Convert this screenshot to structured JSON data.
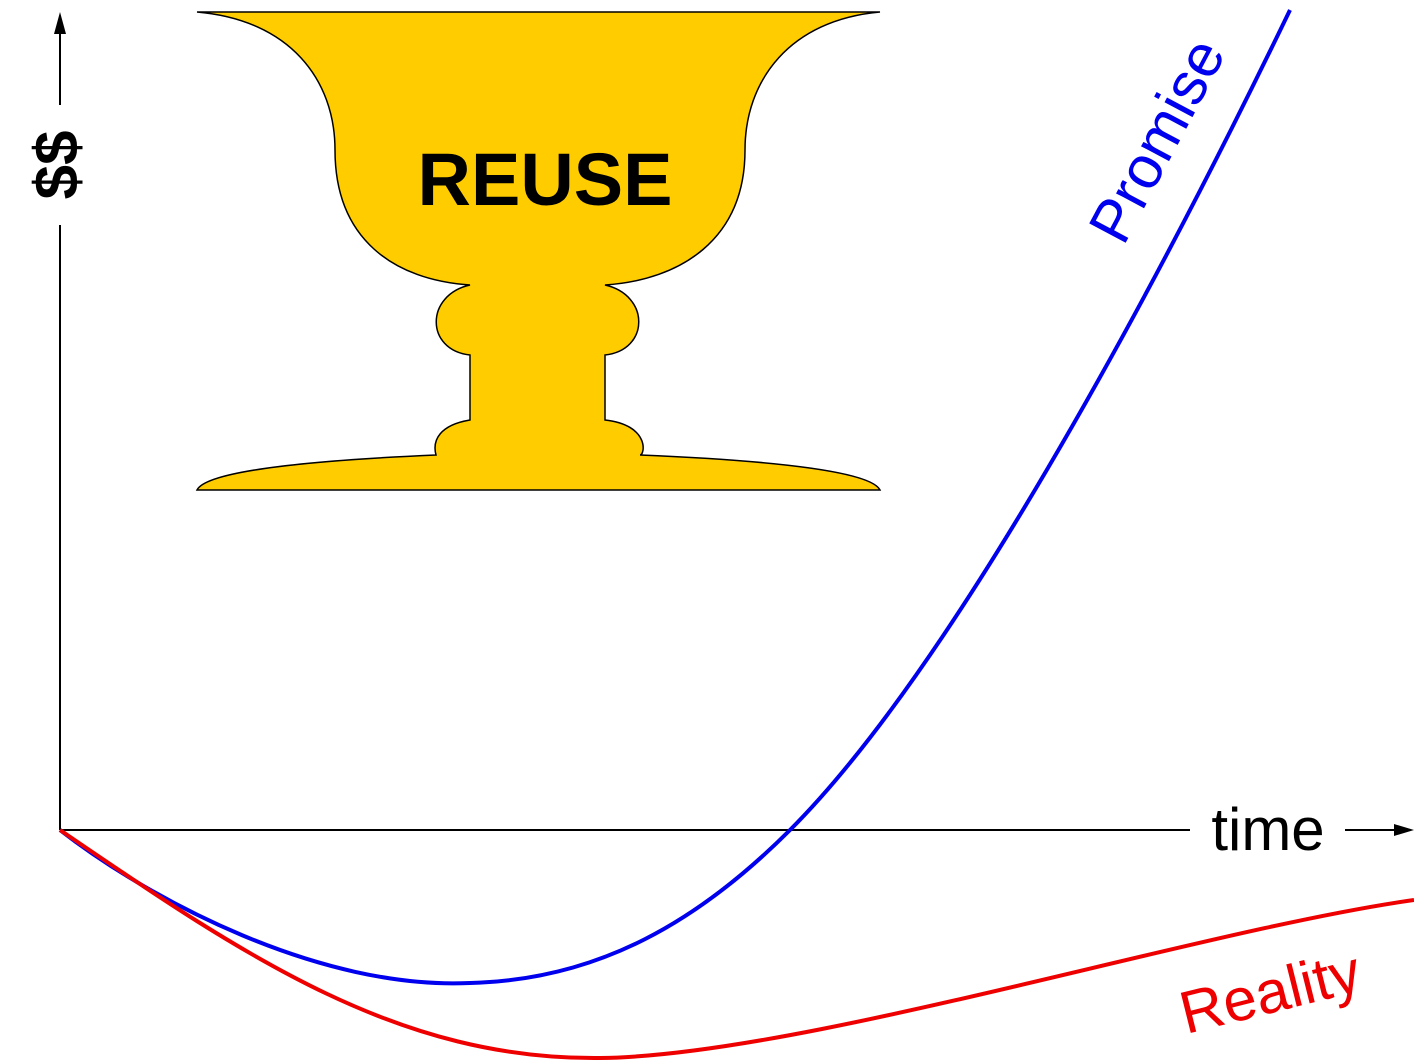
{
  "y_axis_label": "$$",
  "x_axis_label": "time",
  "cup_label": "REUSE",
  "curves": [
    {
      "label": "Promise"
    },
    {
      "label": "Reality"
    }
  ]
}
